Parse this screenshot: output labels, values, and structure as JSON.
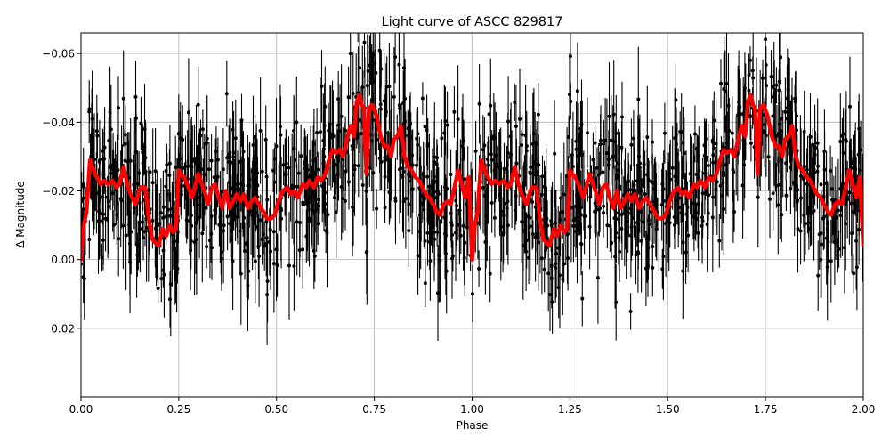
{
  "chart_data": {
    "type": "scatter",
    "title": "Light curve of ASCC 829817",
    "xlabel": "Phase",
    "ylabel": "Δ Magnitude",
    "xlim": [
      0.0,
      2.0
    ],
    "ylim": [
      0.04,
      -0.066
    ],
    "y_inverted": true,
    "grid": true,
    "legend": null,
    "xticks": [
      0.0,
      0.25,
      0.5,
      0.75,
      1.0,
      1.25,
      1.5,
      1.75,
      2.0
    ],
    "xtick_labels": [
      "0.00",
      "0.25",
      "0.50",
      "0.75",
      "1.00",
      "1.25",
      "1.50",
      "1.75",
      "2.00"
    ],
    "yticks": [
      -0.06,
      -0.04,
      -0.02,
      0.0,
      0.02
    ],
    "ytick_labels": [
      "−0.06",
      "−0.04",
      "−0.02",
      "0.00",
      "0.02"
    ],
    "series": [
      {
        "name": "observations",
        "kind": "errorbar-scatter",
        "color": "#000000",
        "description": "Dense phase-folded photometry with vertical error bars, scattered roughly between -0.066 and 0.04 magnitude around the binned curve"
      },
      {
        "name": "binned light curve",
        "kind": "line",
        "color": "#ff0000",
        "linewidth": 4,
        "x": [
          0.0,
          0.007,
          0.014,
          0.023,
          0.036,
          0.05,
          0.059,
          0.068,
          0.08,
          0.091,
          0.098,
          0.109,
          0.118,
          0.127,
          0.139,
          0.146,
          0.152,
          0.164,
          0.173,
          0.182,
          0.189,
          0.198,
          0.209,
          0.218,
          0.227,
          0.236,
          0.243,
          0.25,
          0.255,
          0.264,
          0.275,
          0.284,
          0.291,
          0.3,
          0.309,
          0.318,
          0.325,
          0.334,
          0.343,
          0.352,
          0.361,
          0.37,
          0.38,
          0.389,
          0.398,
          0.407,
          0.416,
          0.427,
          0.436,
          0.445,
          0.455,
          0.466,
          0.475,
          0.486,
          0.495,
          0.505,
          0.516,
          0.527,
          0.536,
          0.545,
          0.555,
          0.566,
          0.575,
          0.584,
          0.595,
          0.605,
          0.614,
          0.625,
          0.634,
          0.643,
          0.652,
          0.661,
          0.67,
          0.68,
          0.689,
          0.698,
          0.705,
          0.712,
          0.718,
          0.723,
          0.73,
          0.736,
          0.745,
          0.755,
          0.766,
          0.775,
          0.784,
          0.793,
          0.8,
          0.809,
          0.818,
          0.827,
          0.836,
          0.845,
          0.855,
          0.864,
          0.873,
          0.882,
          0.891,
          0.9,
          0.909,
          0.918,
          0.927,
          0.936,
          0.945,
          0.955,
          0.964,
          0.973,
          0.982,
          0.991,
          1.0,
          1.007,
          1.014,
          1.023,
          1.036,
          1.05,
          1.059,
          1.068,
          1.08,
          1.091,
          1.098,
          1.109,
          1.118,
          1.127,
          1.139,
          1.146,
          1.152,
          1.164,
          1.173,
          1.182,
          1.189,
          1.198,
          1.209,
          1.218,
          1.227,
          1.236,
          1.243,
          1.25,
          1.255,
          1.264,
          1.275,
          1.284,
          1.291,
          1.3,
          1.309,
          1.318,
          1.325,
          1.334,
          1.343,
          1.352,
          1.361,
          1.37,
          1.38,
          1.389,
          1.398,
          1.407,
          1.416,
          1.427,
          1.436,
          1.445,
          1.455,
          1.466,
          1.475,
          1.486,
          1.495,
          1.505,
          1.516,
          1.527,
          1.536,
          1.545,
          1.555,
          1.566,
          1.575,
          1.584,
          1.595,
          1.605,
          1.614,
          1.625,
          1.634,
          1.643,
          1.652,
          1.661,
          1.67,
          1.68,
          1.689,
          1.698,
          1.705,
          1.712,
          1.718,
          1.723,
          1.73,
          1.736,
          1.745,
          1.755,
          1.766,
          1.775,
          1.784,
          1.793,
          1.8,
          1.809,
          1.818,
          1.827,
          1.836,
          1.845,
          1.855,
          1.864,
          1.873,
          1.882,
          1.891,
          1.9,
          1.909,
          1.918,
          1.927,
          1.936,
          1.945,
          1.955,
          1.964,
          1.973,
          1.982,
          1.991,
          2.0
        ],
        "y": [
          0.0,
          -0.01,
          -0.014,
          -0.029,
          -0.025,
          -0.022,
          -0.023,
          -0.022,
          -0.023,
          -0.021,
          -0.022,
          -0.027,
          -0.022,
          -0.019,
          -0.016,
          -0.019,
          -0.021,
          -0.021,
          -0.012,
          -0.006,
          -0.005,
          -0.004,
          -0.009,
          -0.007,
          -0.01,
          -0.008,
          -0.009,
          -0.026,
          -0.025,
          -0.024,
          -0.021,
          -0.018,
          -0.021,
          -0.025,
          -0.022,
          -0.019,
          -0.016,
          -0.021,
          -0.022,
          -0.018,
          -0.015,
          -0.02,
          -0.015,
          -0.017,
          -0.019,
          -0.017,
          -0.019,
          -0.015,
          -0.017,
          -0.018,
          -0.016,
          -0.014,
          -0.012,
          -0.012,
          -0.013,
          -0.017,
          -0.02,
          -0.021,
          -0.019,
          -0.02,
          -0.018,
          -0.022,
          -0.021,
          -0.023,
          -0.021,
          -0.024,
          -0.023,
          -0.025,
          -0.029,
          -0.032,
          -0.031,
          -0.032,
          -0.03,
          -0.035,
          -0.039,
          -0.036,
          -0.046,
          -0.048,
          -0.045,
          -0.044,
          -0.025,
          -0.044,
          -0.045,
          -0.042,
          -0.036,
          -0.033,
          -0.033,
          -0.03,
          -0.035,
          -0.036,
          -0.039,
          -0.03,
          -0.027,
          -0.026,
          -0.024,
          -0.023,
          -0.021,
          -0.019,
          -0.018,
          -0.016,
          -0.014,
          -0.013,
          -0.016,
          -0.017,
          -0.016,
          -0.021,
          -0.026,
          -0.022,
          -0.018,
          -0.024,
          0.0,
          -0.01,
          -0.014,
          -0.029,
          -0.025,
          -0.022,
          -0.023,
          -0.022,
          -0.023,
          -0.021,
          -0.022,
          -0.027,
          -0.022,
          -0.019,
          -0.016,
          -0.019,
          -0.021,
          -0.021,
          -0.012,
          -0.006,
          -0.005,
          -0.004,
          -0.009,
          -0.007,
          -0.01,
          -0.008,
          -0.009,
          -0.026,
          -0.025,
          -0.024,
          -0.021,
          -0.018,
          -0.021,
          -0.025,
          -0.022,
          -0.019,
          -0.016,
          -0.021,
          -0.022,
          -0.018,
          -0.015,
          -0.02,
          -0.015,
          -0.017,
          -0.019,
          -0.017,
          -0.019,
          -0.015,
          -0.017,
          -0.018,
          -0.016,
          -0.014,
          -0.012,
          -0.012,
          -0.013,
          -0.017,
          -0.02,
          -0.021,
          -0.019,
          -0.02,
          -0.018,
          -0.022,
          -0.021,
          -0.023,
          -0.021,
          -0.024,
          -0.023,
          -0.025,
          -0.029,
          -0.032,
          -0.031,
          -0.032,
          -0.03,
          -0.035,
          -0.039,
          -0.036,
          -0.046,
          -0.048,
          -0.045,
          -0.044,
          -0.025,
          -0.044,
          -0.045,
          -0.042,
          -0.036,
          -0.033,
          -0.033,
          -0.03,
          -0.035,
          -0.036,
          -0.039,
          -0.03,
          -0.027,
          -0.026,
          -0.024,
          -0.023,
          -0.021,
          -0.019,
          -0.018,
          -0.016,
          -0.014,
          -0.013,
          -0.016,
          -0.017,
          -0.016,
          -0.021,
          -0.026,
          -0.022,
          -0.018,
          -0.024,
          -0.004
        ]
      }
    ]
  },
  "colors": {
    "background": "#ffffff",
    "axes": "#000000",
    "grid": "#b0b0b0",
    "points": "#000000",
    "curve": "#ff0000"
  }
}
